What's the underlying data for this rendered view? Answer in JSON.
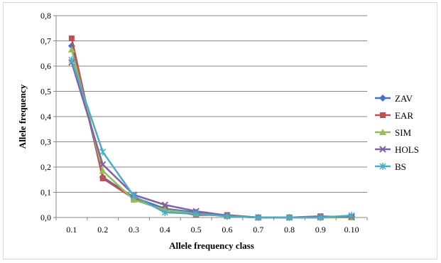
{
  "chart_data": {
    "type": "line",
    "title": "",
    "xlabel": "Allele frequency class",
    "ylabel": "Allele frequency",
    "categories": [
      "0.1",
      "0.2",
      "0.3",
      "0.4",
      "0.5",
      "0.6",
      "0.7",
      "0.8",
      "0.9",
      "0.10"
    ],
    "ylim": [
      0,
      0.8
    ],
    "y_ticks": [
      "0,0",
      "0,1",
      "0,2",
      "0,3",
      "0,4",
      "0,5",
      "0,6",
      "0,7",
      "0,8"
    ],
    "grid": true,
    "legend_position": "right",
    "series": [
      {
        "name": "ZAV",
        "color": "#4472c4",
        "marker": "diamond",
        "values": [
          0.68,
          0.16,
          0.08,
          0.035,
          0.02,
          0.005,
          0.0,
          0.0,
          0.0,
          0.003
        ]
      },
      {
        "name": "EAR",
        "color": "#c0504d",
        "marker": "square",
        "values": [
          0.71,
          0.155,
          0.075,
          0.03,
          0.01,
          0.01,
          0.0,
          0.0,
          0.005,
          0.0
        ]
      },
      {
        "name": "SIM",
        "color": "#9bbb59",
        "marker": "triangle",
        "values": [
          0.665,
          0.185,
          0.07,
          0.03,
          0.015,
          0.005,
          0.0,
          0.0,
          0.0,
          0.0
        ]
      },
      {
        "name": "HOLS",
        "color": "#8064a2",
        "marker": "x",
        "values": [
          0.615,
          0.21,
          0.09,
          0.05,
          0.025,
          0.008,
          0.0,
          0.0,
          0.003,
          0.003
        ]
      },
      {
        "name": "BS",
        "color": "#4bacc6",
        "marker": "star",
        "values": [
          0.625,
          0.26,
          0.085,
          0.02,
          0.015,
          0.005,
          0.0,
          0.0,
          0.0,
          0.008
        ]
      }
    ]
  }
}
